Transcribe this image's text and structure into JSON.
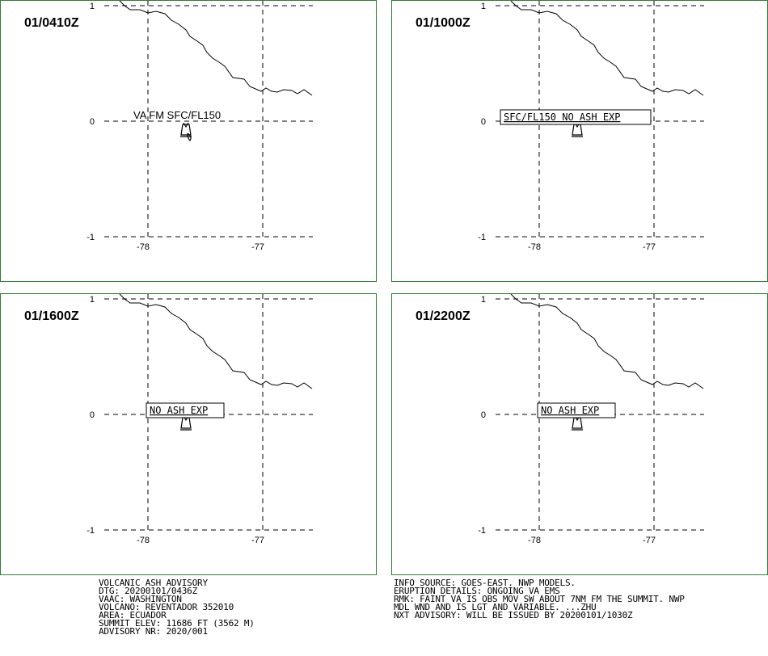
{
  "panels": [
    {
      "time": "01/0410Z",
      "label": "VA FM SFC/FL150",
      "boxed": false
    },
    {
      "time": "01/1000Z",
      "label": "SFC/FL150 NO ASH EXP",
      "boxed": true
    },
    {
      "time": "01/1600Z",
      "label": "NO ASH EXP",
      "boxed": true
    },
    {
      "time": "01/2200Z",
      "label": "NO ASH EXP",
      "boxed": true
    }
  ],
  "axes": {
    "lat_ticks": [
      "1",
      "0",
      "-1"
    ],
    "lon_ticks": [
      "-78",
      "-77"
    ]
  },
  "advisory_left": [
    "VOLCANIC ASH ADVISORY",
    "DTG: 20200101/0436Z",
    "VAAC: WASHINGTON",
    "VOLCANO: REVENTADOR 352010",
    "AREA: ECUADOR",
    "SUMMIT ELEV: 11686 FT (3562 M)",
    "ADVISORY NR: 2020/001"
  ],
  "advisory_right": [
    "INFO SOURCE: GOES-EAST. NWP MODELS.",
    "ERUPTION DETAILS: ONGOING VA EMS",
    "RMK: FAINT VA IS OBS MOV SW ABOUT 7NM FM THE SUMMIT. NWP",
    "MDL WND AND IS LGT AND VARIABLE. ...ZHU",
    "NXT ADVISORY: WILL BE ISSUED BY 20200101/1030Z"
  ],
  "colors": {
    "panel_border": "#2e7d32",
    "lines": "#000000"
  },
  "icons": {
    "volcano": "volcano-icon"
  }
}
